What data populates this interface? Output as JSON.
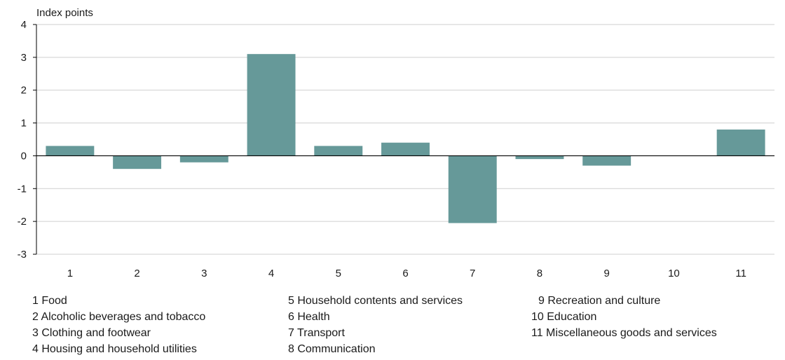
{
  "chart_data": {
    "type": "bar",
    "ylabel": "Index points",
    "ylim": [
      -3,
      4
    ],
    "yticks": [
      4,
      3,
      2,
      1,
      0,
      -1,
      -2,
      -3
    ],
    "grid": true,
    "bar_color": "#669999",
    "categories": [
      "1",
      "2",
      "3",
      "4",
      "5",
      "6",
      "7",
      "8",
      "9",
      "10",
      "11"
    ],
    "values": [
      0.3,
      -0.4,
      -0.2,
      3.1,
      0.3,
      0.4,
      -2.05,
      -0.1,
      -0.3,
      0.0,
      0.8
    ],
    "legend": [
      [
        "1 Food",
        "2 Alcoholic beverages and tobacco",
        "3 Clothing and footwear",
        "4 Housing and household utilities"
      ],
      [
        "5 Household contents and services",
        "6 Health",
        "7 Transport",
        "8 Communication"
      ],
      [
        "9 Recreation and culture",
        "10 Education",
        "11 Miscellaneous goods and services"
      ]
    ]
  }
}
